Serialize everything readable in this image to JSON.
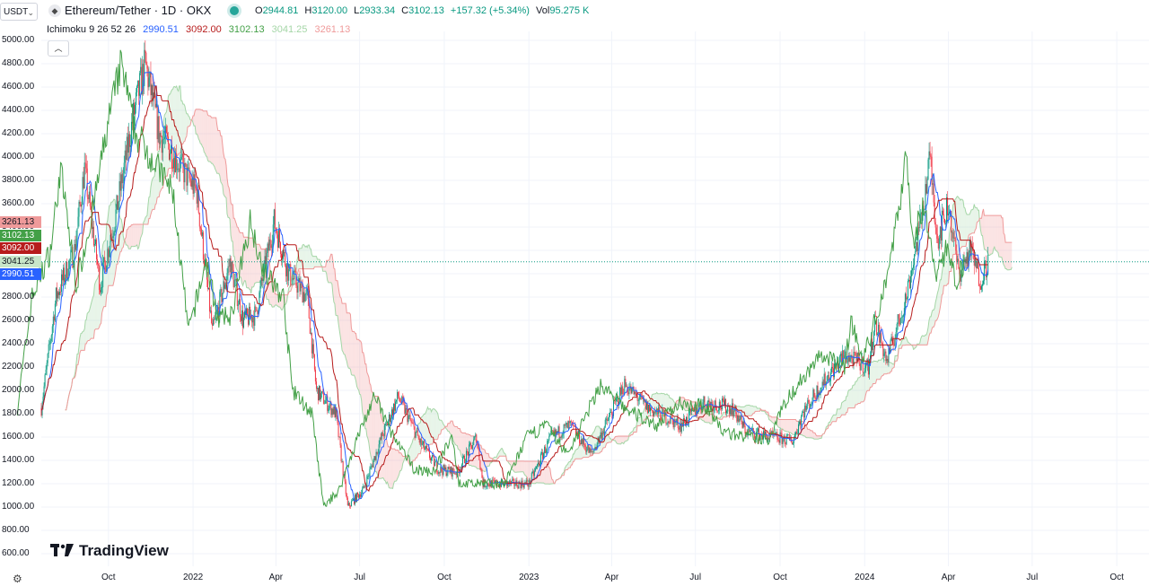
{
  "header": {
    "quote_currency": "USDT",
    "symbol_icon": "ethereum-icon",
    "title": "Ethereum/Tether · 1D · OKX",
    "ohlc": [
      {
        "label": "O",
        "value": "2944.81"
      },
      {
        "label": "H",
        "value": "3120.00"
      },
      {
        "label": "L",
        "value": "2933.34"
      },
      {
        "label": "C",
        "value": "3102.13"
      },
      {
        "label": "",
        "value": "+157.32 (+5.34%)"
      },
      {
        "label": "Vol",
        "value": "95.275 K"
      }
    ]
  },
  "indicator": {
    "name": "Ichimoku 9 26 52 26",
    "values": [
      "2990.51",
      "3092.00",
      "3102.13",
      "3041.25",
      "3261.13"
    ],
    "colors": [
      "#2962ff",
      "#b71c1c",
      "#43a047",
      "#a5d6a7",
      "#ef9a9a"
    ]
  },
  "price_badges": [
    {
      "value": "3261.13",
      "bg": "#ef9a9a",
      "fg": "#131722"
    },
    {
      "value": "3102.13",
      "bg": "#43a047",
      "fg": "#ffffff"
    },
    {
      "value": "3092.00",
      "bg": "#b71c1c",
      "fg": "#ffffff"
    },
    {
      "value": "3041.25",
      "bg": "#c8e6c9",
      "fg": "#131722"
    },
    {
      "value": "2990.51",
      "bg": "#2962ff",
      "fg": "#ffffff"
    }
  ],
  "branding": "TradingView",
  "chart_data": {
    "type": "candlestick",
    "title": "Ethereum/Tether · 1D · OKX",
    "y_ticks": [
      "5000.00",
      "4800.00",
      "4600.00",
      "4400.00",
      "4200.00",
      "4000.00",
      "3800.00",
      "3600.00",
      "3400.00",
      "3200.00",
      "3000.00",
      "2800.00",
      "2600.00",
      "2400.00",
      "2200.00",
      "2000.00",
      "1800.00",
      "1600.00",
      "1400.00",
      "1200.00",
      "1000.00",
      "800.00",
      "600.00"
    ],
    "ylim": [
      600,
      5000
    ],
    "x_ticks": [
      {
        "label": "Oct",
        "date": "2021-10-01"
      },
      {
        "label": "2022",
        "date": "2022-01-01"
      },
      {
        "label": "Apr",
        "date": "2022-04-01"
      },
      {
        "label": "Jul",
        "date": "2022-07-01"
      },
      {
        "label": "Oct",
        "date": "2022-10-01"
      },
      {
        "label": "2023",
        "date": "2023-01-01"
      },
      {
        "label": "Apr",
        "date": "2023-04-01"
      },
      {
        "label": "Jul",
        "date": "2023-07-01"
      },
      {
        "label": "Oct",
        "date": "2023-10-01"
      },
      {
        "label": "2024",
        "date": "2024-01-01"
      },
      {
        "label": "Apr",
        "date": "2024-04-01"
      },
      {
        "label": "Jul",
        "date": "2024-07-01"
      },
      {
        "label": "Oct",
        "date": "2024-10-01"
      }
    ],
    "xlim": [
      "2021-07-20",
      "2024-11-05"
    ],
    "last_price": 3102.13,
    "price_path": [
      {
        "date": "2021-07-20",
        "close": 1850
      },
      {
        "date": "2021-08-05",
        "close": 2800
      },
      {
        "date": "2021-08-25",
        "close": 3200
      },
      {
        "date": "2021-09-05",
        "close": 3900
      },
      {
        "date": "2021-09-22",
        "close": 2900
      },
      {
        "date": "2021-10-10",
        "close": 3550
      },
      {
        "date": "2021-10-28",
        "close": 4350
      },
      {
        "date": "2021-11-10",
        "close": 4800
      },
      {
        "date": "2021-11-25",
        "close": 4200
      },
      {
        "date": "2021-12-05",
        "close": 4100
      },
      {
        "date": "2021-12-20",
        "close": 3900
      },
      {
        "date": "2022-01-05",
        "close": 3700
      },
      {
        "date": "2022-01-22",
        "close": 2500
      },
      {
        "date": "2022-02-10",
        "close": 3100
      },
      {
        "date": "2022-02-24",
        "close": 2600
      },
      {
        "date": "2022-03-10",
        "close": 2650
      },
      {
        "date": "2022-03-30",
        "close": 3450
      },
      {
        "date": "2022-04-15",
        "close": 3000
      },
      {
        "date": "2022-05-05",
        "close": 2800
      },
      {
        "date": "2022-05-15",
        "close": 2000
      },
      {
        "date": "2022-06-05",
        "close": 1800
      },
      {
        "date": "2022-06-18",
        "close": 1000
      },
      {
        "date": "2022-07-05",
        "close": 1150
      },
      {
        "date": "2022-07-25",
        "close": 1600
      },
      {
        "date": "2022-08-12",
        "close": 1950
      },
      {
        "date": "2022-09-05",
        "close": 1550
      },
      {
        "date": "2022-09-25",
        "close": 1320
      },
      {
        "date": "2022-10-15",
        "close": 1300
      },
      {
        "date": "2022-11-05",
        "close": 1600
      },
      {
        "date": "2022-11-12",
        "close": 1200
      },
      {
        "date": "2022-12-15",
        "close": 1200
      },
      {
        "date": "2023-01-01",
        "close": 1200
      },
      {
        "date": "2023-01-25",
        "close": 1600
      },
      {
        "date": "2023-02-15",
        "close": 1700
      },
      {
        "date": "2023-03-10",
        "close": 1450
      },
      {
        "date": "2023-04-15",
        "close": 2050
      },
      {
        "date": "2023-05-10",
        "close": 1850
      },
      {
        "date": "2023-06-15",
        "close": 1700
      },
      {
        "date": "2023-07-10",
        "close": 1900
      },
      {
        "date": "2023-08-10",
        "close": 1850
      },
      {
        "date": "2023-08-25",
        "close": 1650
      },
      {
        "date": "2023-09-20",
        "close": 1600
      },
      {
        "date": "2023-10-15",
        "close": 1570
      },
      {
        "date": "2023-10-25",
        "close": 1800
      },
      {
        "date": "2023-11-15",
        "close": 2050
      },
      {
        "date": "2023-12-10",
        "close": 2300
      },
      {
        "date": "2024-01-05",
        "close": 2200
      },
      {
        "date": "2024-01-12",
        "close": 2600
      },
      {
        "date": "2024-01-25",
        "close": 2250
      },
      {
        "date": "2024-02-15",
        "close": 2800
      },
      {
        "date": "2024-03-01",
        "close": 3400
      },
      {
        "date": "2024-03-12",
        "close": 4000
      },
      {
        "date": "2024-03-20",
        "close": 3300
      },
      {
        "date": "2024-04-01",
        "close": 3600
      },
      {
        "date": "2024-04-12",
        "close": 3000
      },
      {
        "date": "2024-04-25",
        "close": 3200
      },
      {
        "date": "2024-05-05",
        "close": 2950
      },
      {
        "date": "2024-05-14",
        "close": 3102
      }
    ]
  }
}
